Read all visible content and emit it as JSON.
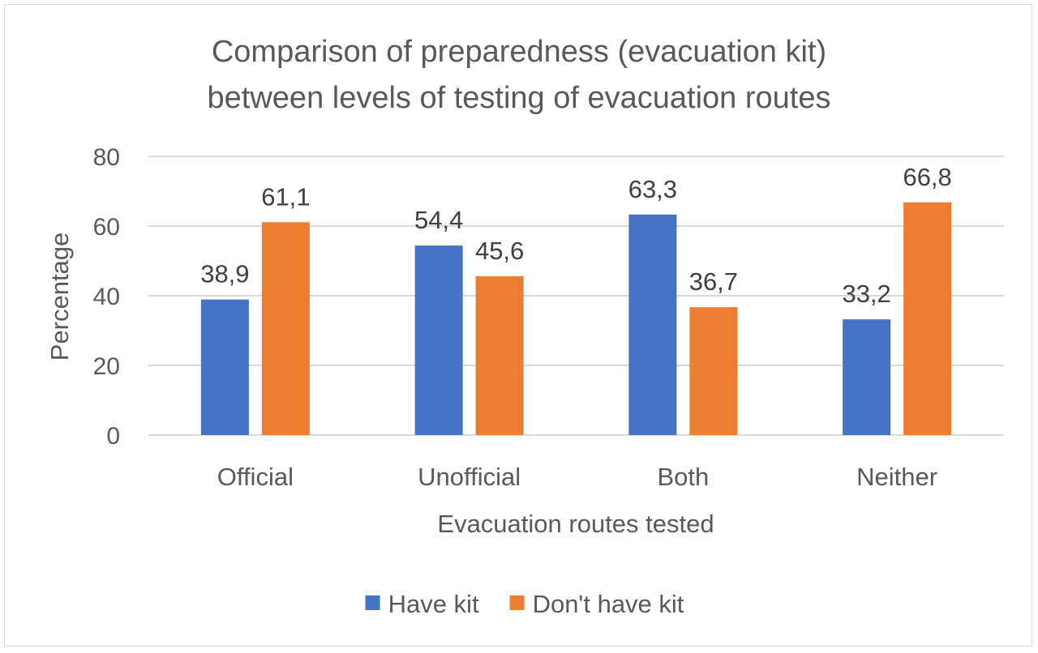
{
  "chart_data": {
    "type": "bar",
    "title_lines": [
      "Comparison of preparedness (evacuation kit)",
      "between levels of testing of evacuation routes"
    ],
    "xlabel": "Evacuation routes tested",
    "ylabel": "Percentage",
    "ylim": [
      0,
      80
    ],
    "yticks": [
      "0",
      "20",
      "40",
      "60",
      "80"
    ],
    "ytick_values": [
      0,
      20,
      40,
      60,
      80
    ],
    "grid": true,
    "legend_position": "bottom",
    "categories": [
      "Official",
      "Unofficial",
      "Both",
      "Neither"
    ],
    "series": [
      {
        "name": "Have kit",
        "color": "#4472c4",
        "values": [
          38.9,
          54.4,
          63.3,
          33.2
        ],
        "labels": [
          "38,9",
          "54,4",
          "63,3",
          "33,2"
        ]
      },
      {
        "name": "Don't have kit",
        "color": "#ed7d31",
        "values": [
          61.1,
          45.6,
          36.7,
          66.8
        ],
        "labels": [
          "61,1",
          "45,6",
          "36,7",
          "66,8"
        ]
      }
    ],
    "gridline_color": "#d9d9d9"
  }
}
